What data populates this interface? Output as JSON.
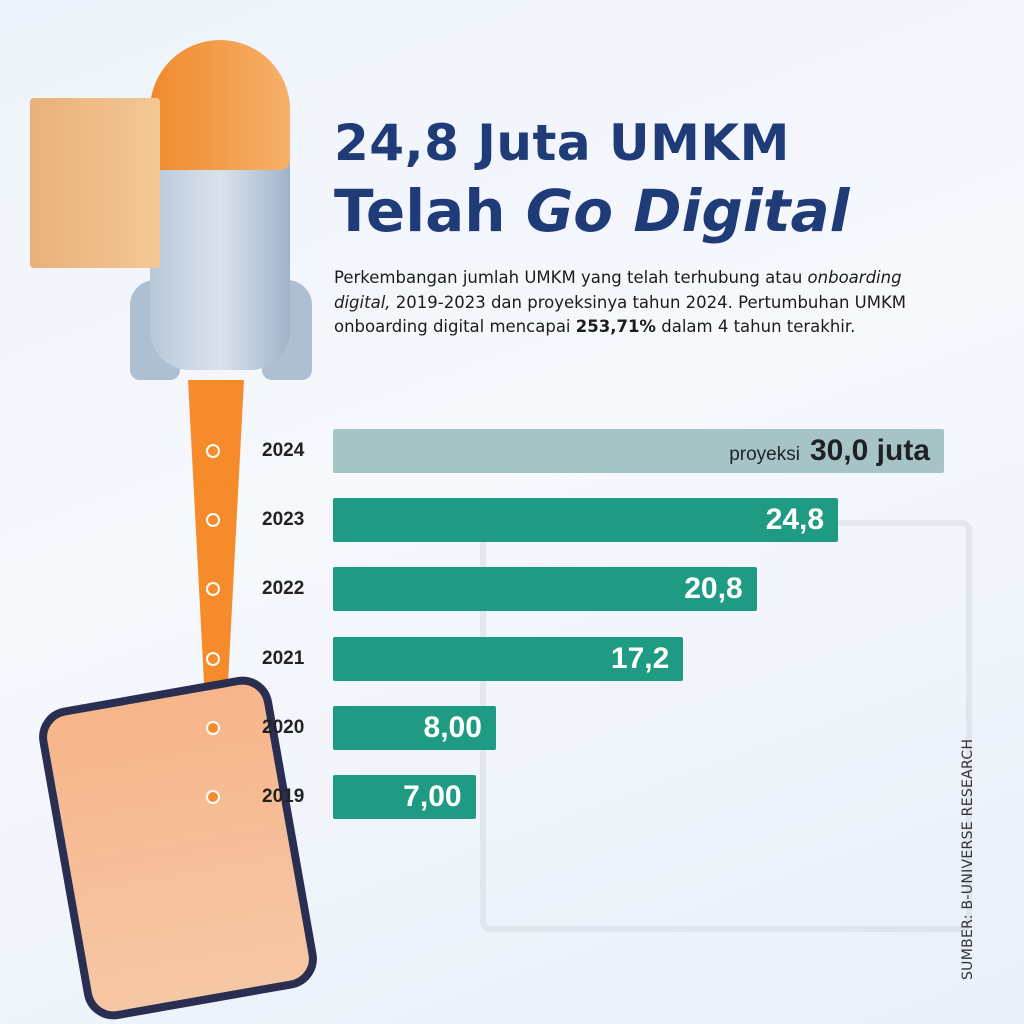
{
  "header": {
    "title_line1": "24,8 Juta UMKM",
    "title_line2_a": "Telah ",
    "title_line2_b": "Go Digital"
  },
  "description": {
    "p1": "Perkembangan jumlah UMKM yang telah terhubung atau ",
    "p1_italic": "onboarding digital,",
    "p2": " 2019-2023 dan proyeksinya tahun 2024. Pertumbuhan UMKM onboarding digital mencapai ",
    "p2_bold": "253,71%",
    "p3": " dalam 4 tahun terakhir."
  },
  "source": "SUMBER: B-UNIVERSE RESEARCH",
  "chart_data": {
    "type": "bar",
    "orientation": "horizontal",
    "categories": [
      "2024",
      "2023",
      "2022",
      "2021",
      "2020",
      "2019"
    ],
    "values": [
      30.0,
      24.8,
      20.8,
      17.2,
      8.0,
      7.0
    ],
    "labels": [
      "30,0 juta",
      "24,8",
      "20,8",
      "17,2",
      "8,00",
      "7,00"
    ],
    "projection_label": "proyeksi",
    "projected_category": "2024",
    "colors": {
      "actual": "#1f9b83",
      "projection": "#a6c4c6"
    },
    "xlim": [
      0,
      30
    ],
    "grid": false
  }
}
